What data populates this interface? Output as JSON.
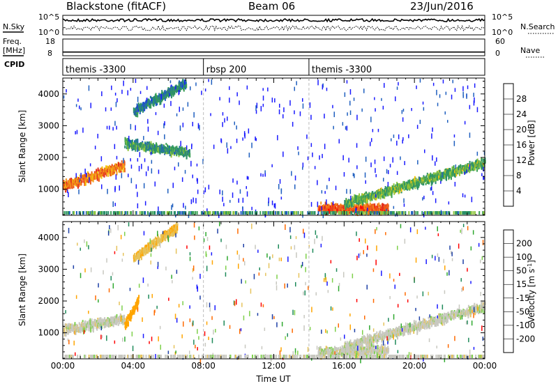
{
  "header": {
    "site": "Blackstone (fitACF)",
    "beam": "Beam 06",
    "date": "23/Jun/2016"
  },
  "noise_panel": {
    "left_label": "N.Sky",
    "right_label": "N.Search",
    "left_ticks": [
      "10^5",
      "10^0"
    ],
    "right_ticks": [
      "10^5",
      "10^0"
    ]
  },
  "freq_panel": {
    "left_label_1": "Freq.",
    "left_label_2": "[MHz]",
    "right_label": "Nave",
    "left_ticks": [
      "18",
      "8"
    ],
    "right_ticks": [
      "60",
      "0"
    ],
    "freq_mhz": 10.2
  },
  "cpid_panel": {
    "label": "CPID",
    "segments": [
      {
        "name": "themis -3300",
        "start_hour": 0
      },
      {
        "name": "rbsp 200",
        "start_hour": 8
      },
      {
        "name": "themis -3300",
        "start_hour": 14
      }
    ]
  },
  "colors": {
    "power_scale": [
      "#1a1aff",
      "#1f5fbf",
      "#2a8f6a",
      "#3aa055",
      "#8fc63e",
      "#f2c40f",
      "#f59a1a",
      "#ee5f1c",
      "#e32b1f",
      "#ff0000"
    ],
    "velocity_scale": [
      "#ff0000",
      "#ff6a00",
      "#ffa500",
      "#e6c35c",
      "#c8c8c0",
      "#c8c8c0",
      "#7ed04b",
      "#2ea82e",
      "#1e8a5a",
      "#1d3fa6",
      "#1a1aff"
    ]
  },
  "chart_data": [
    {
      "type": "heatmap",
      "title": "",
      "xlabel": "",
      "ylabel": "Slant Range [km]",
      "xlim": [
        0,
        24
      ],
      "ylim": [
        180,
        4500
      ],
      "x_tick_labels": [
        "00:00",
        "04:00",
        "08:00",
        "12:00",
        "16:00",
        "20:00",
        "00:00"
      ],
      "y_tick_labels": [
        "1000",
        "2000",
        "3000",
        "4000"
      ],
      "colorbar": {
        "label": "Power [dB]",
        "tick_labels": [
          "4",
          "8",
          "12",
          "16",
          "20",
          "24",
          "28"
        ],
        "range": [
          0,
          30
        ]
      },
      "features": [
        {
          "name": "early E-region band",
          "t_start": 0.0,
          "t_end": 3.5,
          "range_start_km": 1150,
          "range_end_km": 1800,
          "peak_db": 26
        },
        {
          "name": "morning band",
          "t_start": 3.5,
          "t_end": 7.2,
          "range_start_km": 2500,
          "range_end_km": 2200,
          "peak_db": 14
        },
        {
          "name": "high range streak",
          "t_start": 4.0,
          "t_end": 7.0,
          "range_start_km": 3500,
          "range_end_km": 4400,
          "peak_db": 12
        },
        {
          "name": "afternoon ground scatter",
          "t_start": 14.5,
          "t_end": 18.5,
          "range_start_km": 450,
          "range_end_km": 450,
          "peak_db": 28
        },
        {
          "name": "evening rising band",
          "t_start": 16.0,
          "t_end": 24.0,
          "range_start_km": 600,
          "range_end_km": 1900,
          "peak_db": 16
        }
      ]
    },
    {
      "type": "heatmap",
      "title": "",
      "xlabel": "Time UT",
      "ylabel": "Slant Range [km]",
      "xlim": [
        0,
        24
      ],
      "ylim": [
        180,
        4500
      ],
      "x_tick_labels": [
        "00:00",
        "04:00",
        "08:00",
        "12:00",
        "16:00",
        "20:00",
        "00:00"
      ],
      "y_tick_labels": [
        "1000",
        "2000",
        "3000",
        "4000"
      ],
      "colorbar": {
        "label": "Velocity [m s^-1]",
        "tick_labels": [
          "200",
          "100",
          "50",
          "15",
          "-15",
          "-50",
          "-100",
          "-200"
        ],
        "range": [
          -250,
          250
        ]
      },
      "features": [
        {
          "name": "ground scatter band",
          "t_start": 0.0,
          "t_end": 3.5,
          "range_start_km": 1150,
          "range_end_km": 1500,
          "velocity": 0
        },
        {
          "name": "negative velocity streak",
          "t_start": 3.5,
          "t_end": 4.3,
          "range_start_km": 1300,
          "range_end_km": 2100,
          "velocity": -80
        },
        {
          "name": "high range negative streak",
          "t_start": 4.0,
          "t_end": 6.5,
          "range_start_km": 3400,
          "range_end_km": 4400,
          "velocity": -40
        },
        {
          "name": "afternoon ground scatter",
          "t_start": 14.5,
          "t_end": 18.5,
          "range_start_km": 450,
          "range_end_km": 500,
          "velocity": 0
        },
        {
          "name": "evening rising band",
          "t_start": 16.0,
          "t_end": 24.0,
          "range_start_km": 600,
          "range_end_km": 1900,
          "velocity": 0
        }
      ]
    }
  ]
}
